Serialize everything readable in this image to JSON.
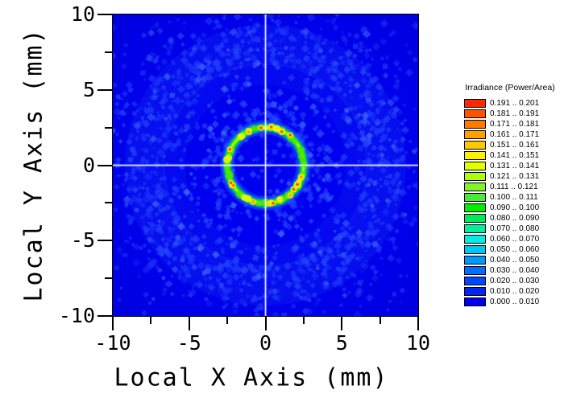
{
  "figure": {
    "background": "#FFFFFF"
  },
  "chart_data": {
    "type": "heatmap",
    "title": "",
    "xlabel": "Local X Axis (mm)",
    "ylabel": "Local Y Axis (mm)",
    "xlim": [
      -10,
      10
    ],
    "ylim": [
      -10,
      10
    ],
    "x_major_ticks": [
      -10,
      -5,
      0,
      5,
      10
    ],
    "y_major_ticks": [
      10,
      5,
      0,
      -5,
      -10
    ],
    "x_tick_labels": [
      "-10",
      "-5",
      "0",
      "5",
      "10"
    ],
    "y_tick_labels": [
      "10",
      "5",
      "0",
      "-5",
      "-10"
    ],
    "minor_tick_positions": [
      -7.5,
      -2.5,
      2.5,
      7.5
    ],
    "grid": false,
    "crosshair": {
      "x_mm": 0,
      "y_mm": 0,
      "color": "#FFFFFF"
    },
    "features": {
      "ring": {
        "center_mm": [
          0,
          0
        ],
        "radius_mm": 2.5,
        "width_mm": 0.45,
        "peak_irradiance": 0.201,
        "edge_color": "#00C8E8",
        "core_colors": [
          "#00D847",
          "#3FE500",
          "#B4F800",
          "#FFE800",
          "#FF9900",
          "#FF2800"
        ]
      },
      "background": {
        "base_color": "#0000EE",
        "speckle_color": "#2343FF",
        "irradiance_range": "0.000 .. 0.020",
        "faint_outer_band_radius_mm": 7.9
      }
    },
    "legend": {
      "title": "Irradiance (Power/Area)",
      "entries": [
        {
          "label": "0.191 .. 0.201",
          "color": "#FF2800"
        },
        {
          "label": "0.181 .. 0.191",
          "color": "#FF5200"
        },
        {
          "label": "0.171 .. 0.181",
          "color": "#FF7B00"
        },
        {
          "label": "0.161 .. 0.171",
          "color": "#FFA000"
        },
        {
          "label": "0.151 .. 0.161",
          "color": "#FFC800"
        },
        {
          "label": "0.141 .. 0.151",
          "color": "#FFF000"
        },
        {
          "label": "0.131 .. 0.141",
          "color": "#E0FF00"
        },
        {
          "label": "0.121 .. 0.131",
          "color": "#AEFF0A"
        },
        {
          "label": "0.111 .. 0.121",
          "color": "#7FF428"
        },
        {
          "label": "0.100 .. 0.111",
          "color": "#4CE83C"
        },
        {
          "label": "0.090 .. 0.100",
          "color": "#00EE00"
        },
        {
          "label": "0.080 .. 0.090",
          "color": "#00E85E"
        },
        {
          "label": "0.070 .. 0.080",
          "color": "#00EEA0"
        },
        {
          "label": "0.060 .. 0.070",
          "color": "#00EEE6"
        },
        {
          "label": "0.050 .. 0.060",
          "color": "#00C6F4"
        },
        {
          "label": "0.040 .. 0.050",
          "color": "#0099FF"
        },
        {
          "label": "0.030 .. 0.040",
          "color": "#006EFF"
        },
        {
          "label": "0.020 .. 0.030",
          "color": "#0047FF"
        },
        {
          "label": "0.010 .. 0.020",
          "color": "#0026F5"
        },
        {
          "label": "0.000 .. 0.010",
          "color": "#0000EE"
        }
      ]
    }
  }
}
